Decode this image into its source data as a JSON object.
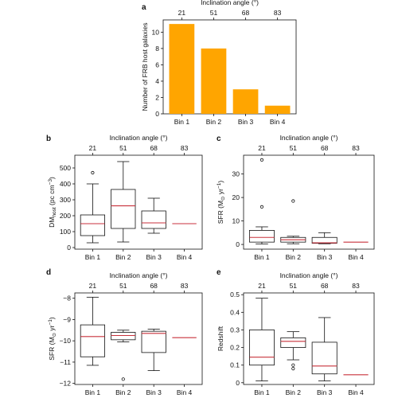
{
  "colors": {
    "bar": "#FFA500",
    "median": "#C8323C",
    "axis": "#111111"
  },
  "chart_data": [
    {
      "panel": "a",
      "type": "bar",
      "categories": [
        "Bin 1",
        "Bin 2",
        "Bin 3",
        "Bin 4"
      ],
      "values": [
        11,
        8,
        3,
        1
      ],
      "xlabel": "",
      "ylabel": "Number of FRB host galaxies",
      "top_axis_label": "Inclination angle (°)",
      "top_ticks": [
        "21",
        "51",
        "68",
        "83"
      ],
      "ylim": [
        0,
        11.5
      ],
      "yticks": [
        0,
        2,
        4,
        6,
        8,
        10
      ],
      "grid": false
    },
    {
      "panel": "b",
      "type": "box",
      "categories": [
        "Bin 1",
        "Bin 2",
        "Bin 3",
        "Bin 4"
      ],
      "boxes": [
        {
          "min": 30,
          "q1": 75,
          "median": 150,
          "q3": 205,
          "max": 400,
          "outliers": [
            470
          ]
        },
        {
          "min": 35,
          "q1": 120,
          "median": 262,
          "q3": 365,
          "max": 540,
          "outliers": []
        },
        {
          "min": 90,
          "q1": 120,
          "median": 155,
          "q3": 230,
          "max": 310,
          "outliers": []
        },
        {
          "min": 150,
          "q1": 150,
          "median": 150,
          "q3": 150,
          "max": 150,
          "outliers": []
        }
      ],
      "ylabel_main": "DM",
      "ylabel_sub": "host",
      "ylabel_unit": " (pc cm",
      "ylabel_sup": "−3",
      "ylabel_close": ")",
      "top_axis_label": "Inclination angle (°)",
      "top_ticks": [
        "21",
        "51",
        "68",
        "83"
      ],
      "ylim": [
        -10,
        580
      ],
      "yticks": [
        0,
        100,
        200,
        300,
        400,
        500
      ],
      "grid": false
    },
    {
      "panel": "c",
      "type": "box",
      "categories": [
        "Bin 1",
        "Bin 2",
        "Bin 3",
        "Bin 4"
      ],
      "boxes": [
        {
          "min": 0.2,
          "q1": 1,
          "median": 3,
          "q3": 6,
          "max": 7.5,
          "outliers": [
            16,
            36
          ]
        },
        {
          "min": 0.3,
          "q1": 1,
          "median": 2,
          "q3": 3,
          "max": 3.5,
          "outliers": [
            18.5
          ]
        },
        {
          "min": 0.3,
          "q1": 0.5,
          "median": 0.7,
          "q3": 3,
          "max": 5,
          "outliers": []
        },
        {
          "min": 1,
          "q1": 1,
          "median": 1,
          "q3": 1,
          "max": 1,
          "outliers": []
        }
      ],
      "ylabel_main": "SFR (M",
      "ylabel_sub": "⊙",
      "ylabel_unit": " yr",
      "ylabel_sup": "−1",
      "ylabel_close": ")",
      "top_axis_label": "Inclination angle (°)",
      "top_ticks": [
        "21",
        "51",
        "68",
        "83"
      ],
      "ylim": [
        -2,
        38
      ],
      "yticks": [
        0,
        10,
        20,
        30
      ],
      "grid": false
    },
    {
      "panel": "d",
      "type": "box",
      "categories": [
        "Bin 1",
        "Bin 2",
        "Bin 3",
        "Bin 4"
      ],
      "boxes": [
        {
          "min": -11.15,
          "q1": -10.75,
          "median": -9.8,
          "q3": -9.25,
          "max": -7.95,
          "outliers": []
        },
        {
          "min": -10.05,
          "q1": -9.95,
          "median": -9.75,
          "q3": -9.6,
          "max": -9.5,
          "outliers": [
            -11.8
          ]
        },
        {
          "min": -11.4,
          "q1": -10.55,
          "median": -9.65,
          "q3": -9.55,
          "max": -9.45,
          "outliers": []
        },
        {
          "min": -9.85,
          "q1": -9.85,
          "median": -9.85,
          "q3": -9.85,
          "max": -9.85,
          "outliers": []
        }
      ],
      "ylabel_main": "SFR (M",
      "ylabel_sub": "⊙",
      "ylabel_unit": " yr",
      "ylabel_sup": "−1",
      "ylabel_close": ")",
      "top_axis_label": "Inclination angle (°)",
      "top_ticks": [
        "21",
        "51",
        "68",
        "83"
      ],
      "ylim": [
        -12.05,
        -7.75
      ],
      "yticks": [
        -12,
        -11,
        -10,
        -9,
        -8
      ],
      "grid": false
    },
    {
      "panel": "e",
      "type": "box",
      "categories": [
        "Bin 1",
        "Bin 2",
        "Bin 3",
        "Bin 4"
      ],
      "boxes": [
        {
          "min": 0.01,
          "q1": 0.1,
          "median": 0.145,
          "q3": 0.3,
          "max": 0.48,
          "outliers": []
        },
        {
          "min": 0.13,
          "q1": 0.2,
          "median": 0.235,
          "q3": 0.255,
          "max": 0.29,
          "outliers": [
            0.1,
            0.08
          ]
        },
        {
          "min": 0.01,
          "q1": 0.05,
          "median": 0.095,
          "q3": 0.23,
          "max": 0.37,
          "outliers": []
        },
        {
          "min": 0.045,
          "q1": 0.045,
          "median": 0.045,
          "q3": 0.045,
          "max": 0.045,
          "outliers": []
        }
      ],
      "ylabel_main": "Redshift",
      "ylabel_sub": "",
      "ylabel_unit": "",
      "ylabel_sup": "",
      "ylabel_close": "",
      "top_axis_label": "Inclination angle (°)",
      "top_ticks": [
        "21",
        "51",
        "68",
        "83"
      ],
      "ylim": [
        -0.01,
        0.51
      ],
      "ytick_labels": [
        "0",
        "0.1",
        "0.2",
        "0.3",
        "0.4",
        "0.5"
      ],
      "yticks": [
        0,
        0.1,
        0.2,
        0.3,
        0.4,
        0.5
      ],
      "grid": false
    }
  ]
}
